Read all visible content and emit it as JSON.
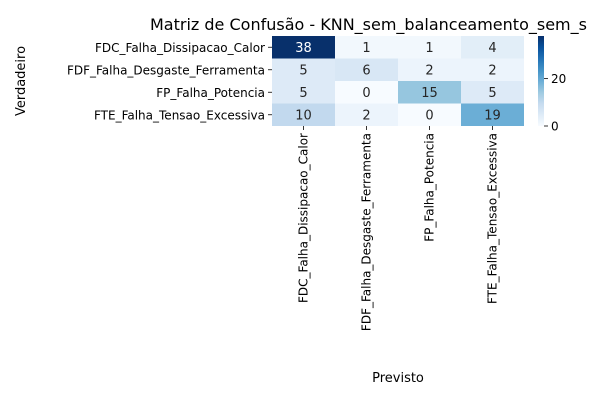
{
  "chart_data": {
    "type": "heatmap",
    "title": "Matriz de Confusão - KNN_sem_balanceamento_sem_s",
    "xlabel": "Previsto",
    "ylabel": "Verdadeiro",
    "rows": [
      "FDC_Falha_Dissipacao_Calor",
      "FDF_Falha_Desgaste_Ferramenta",
      "FP_Falha_Potencia",
      "FTE_Falha_Tensao_Excessiva"
    ],
    "columns": [
      "FDC_Falha_Dissipacao_Calor",
      "FDF_Falha_Desgaste_Ferramenta",
      "FP_Falha_Potencia",
      "FTE_Falha_Tensao_Excessiva"
    ],
    "values": [
      [
        38,
        1,
        1,
        4
      ],
      [
        5,
        6,
        2,
        2
      ],
      [
        5,
        0,
        15,
        5
      ],
      [
        10,
        2,
        0,
        19
      ]
    ],
    "colormap": "Blues",
    "colorbar": {
      "min": 0,
      "max": 38,
      "ticks": [
        0,
        20
      ]
    },
    "colors": {
      "low": "#f7fbff",
      "high": "#08306b",
      "text_dark": "#262626",
      "text_light": "#ffffff"
    }
  }
}
